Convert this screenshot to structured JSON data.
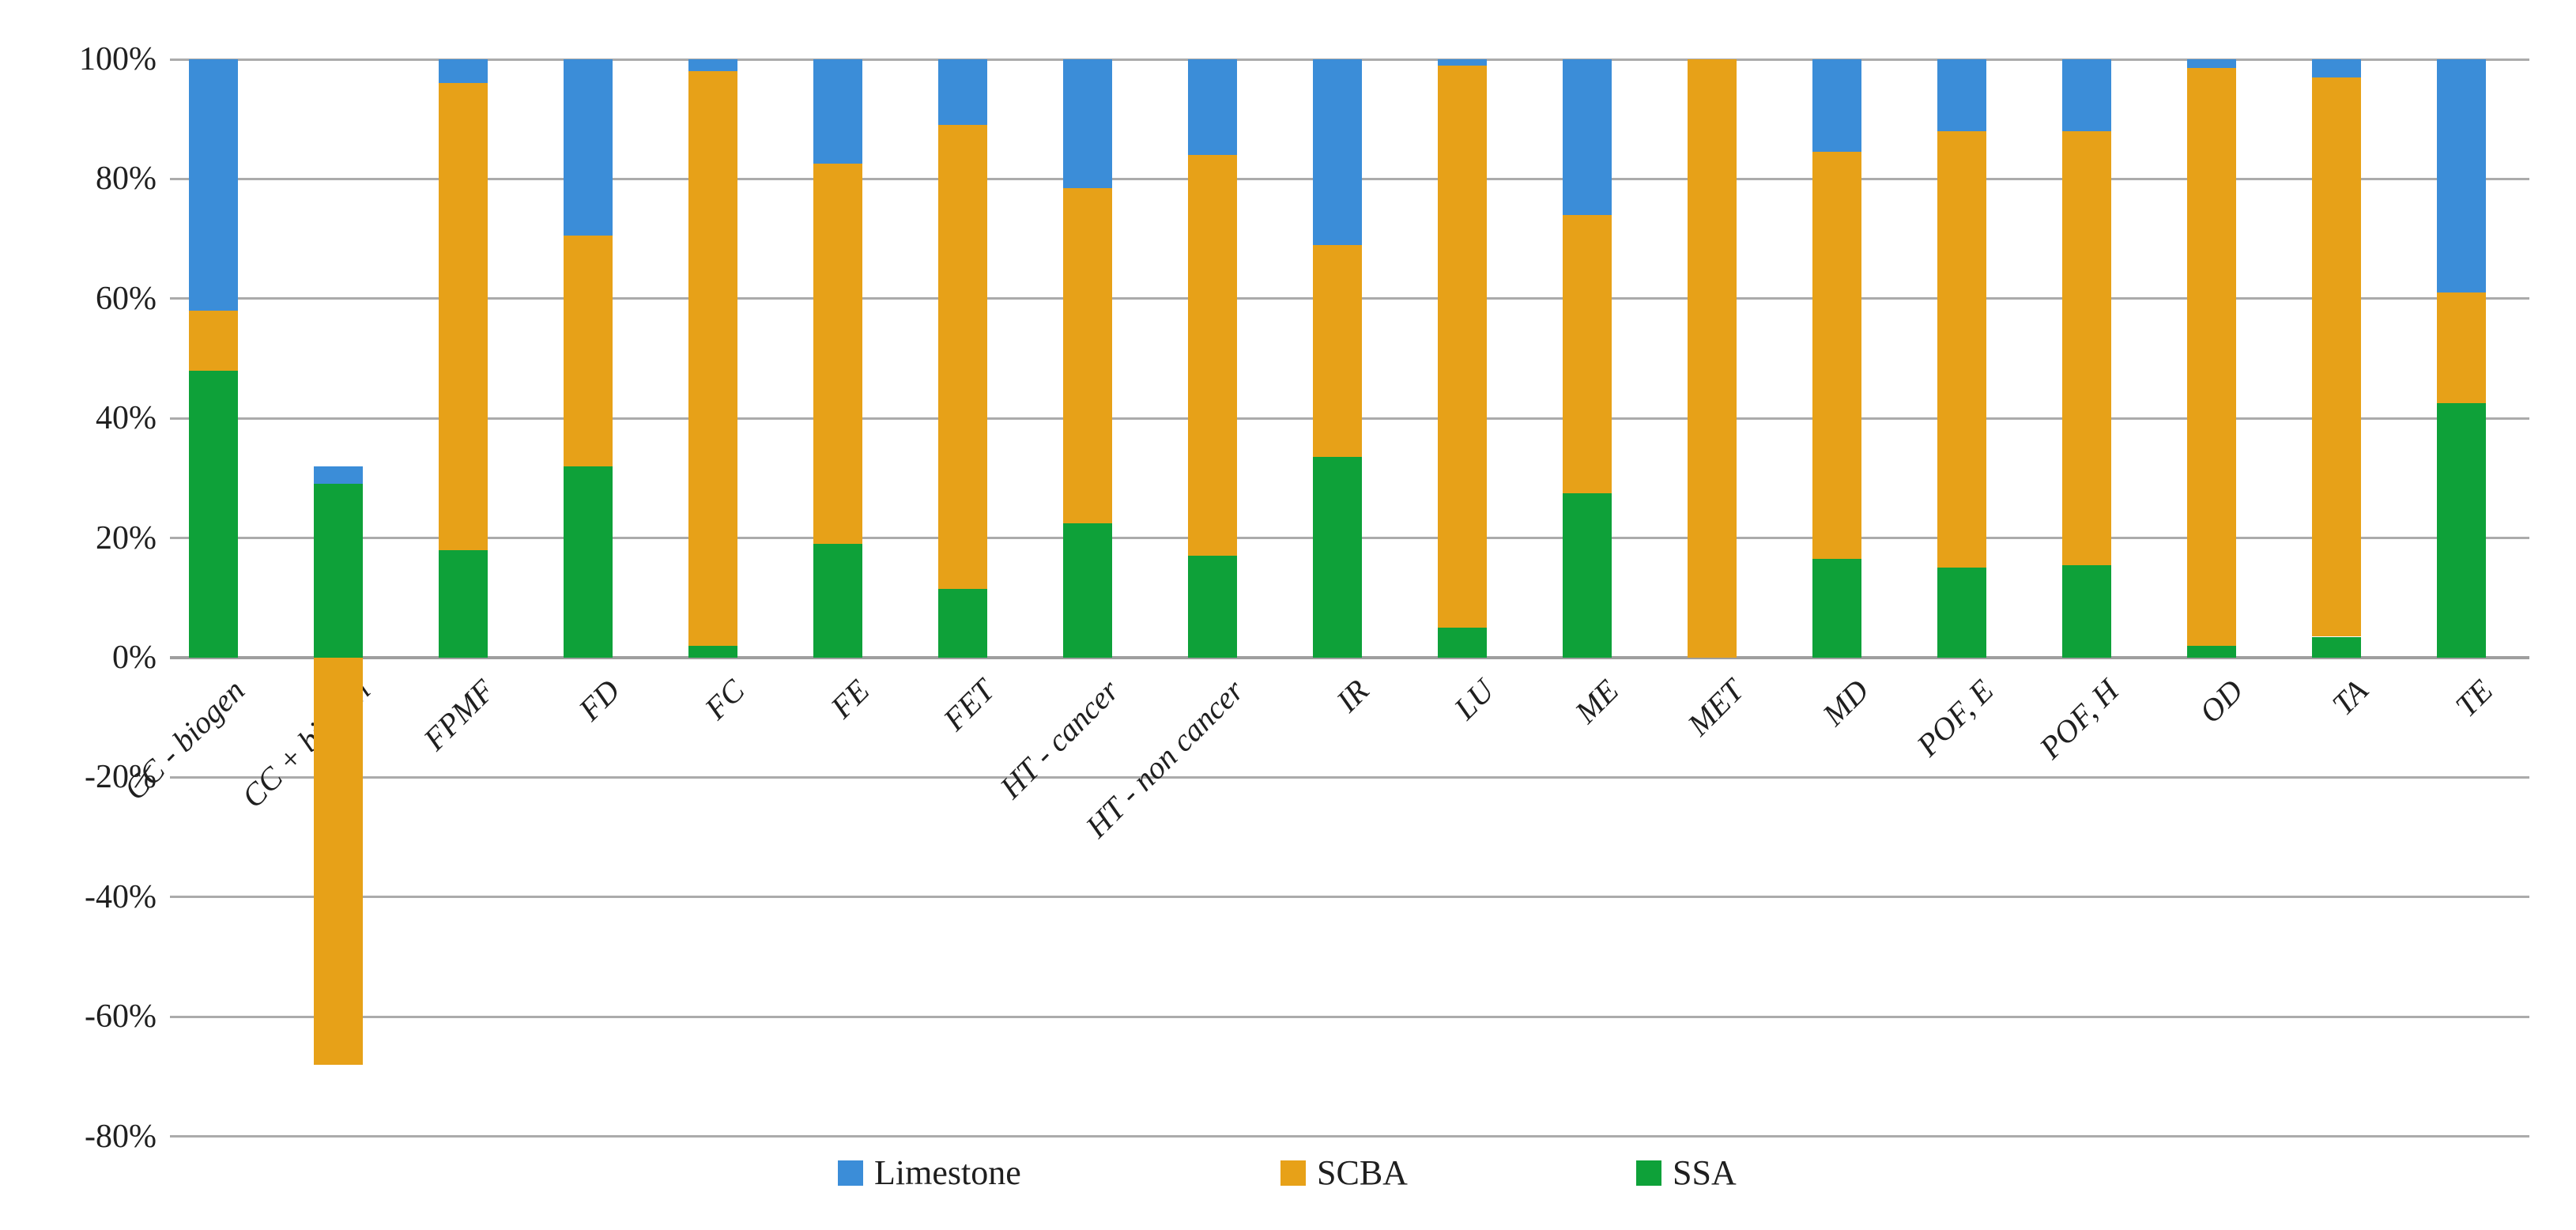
{
  "figure": {
    "background": "#ffffff",
    "title": ""
  },
  "chart_data": {
    "type": "bar",
    "stacked": true,
    "title": "",
    "xlabel": "",
    "ylabel": "",
    "categories": [
      "CC - biogen",
      "CC + biogen",
      "FPMF",
      "FD",
      "FC",
      "FE",
      "FET",
      "HT - cancer",
      "HT - non cancer",
      "IR",
      "LU",
      "ME",
      "MET",
      "MD",
      "POF, E",
      "POF, H",
      "OD",
      "TA",
      "TE"
    ],
    "series": [
      {
        "name": "Limestone",
        "color": "#3B8DD8",
        "values": [
          42,
          3,
          4,
          29.5,
          2,
          17.5,
          11,
          21.5,
          16,
          31,
          1,
          26,
          0,
          15.5,
          12,
          12,
          1.5,
          3,
          39
        ]
      },
      {
        "name": "SCBA",
        "color": "#E7A118",
        "values": [
          10,
          -68,
          78,
          38.5,
          96,
          63.5,
          77.5,
          56,
          67,
          35.5,
          94,
          46.5,
          100,
          68,
          73,
          72.5,
          96.5,
          93.5,
          18.5
        ]
      },
      {
        "name": "SSA",
        "color": "#0EA139",
        "values": [
          48,
          29,
          18,
          32,
          2,
          19,
          11.5,
          22.5,
          17,
          33.5,
          5,
          27.5,
          0,
          16.5,
          15,
          15.5,
          2,
          3.5,
          42.5
        ]
      }
    ],
    "stack_order_bottom_to_top": [
      "SSA",
      "SCBA",
      "Limestone"
    ],
    "ylim": [
      -80,
      100
    ],
    "yticks": [
      100,
      80,
      60,
      40,
      20,
      0,
      -20,
      -40,
      -60,
      -80
    ],
    "ytick_suffix": "%",
    "grid": "horizontal",
    "gridline_color": "#ababab",
    "axis_text_color": "#1f1f1f",
    "legend_position": "bottom-center",
    "legend_labels": [
      "Limestone",
      "SCBA",
      "SSA"
    ]
  }
}
